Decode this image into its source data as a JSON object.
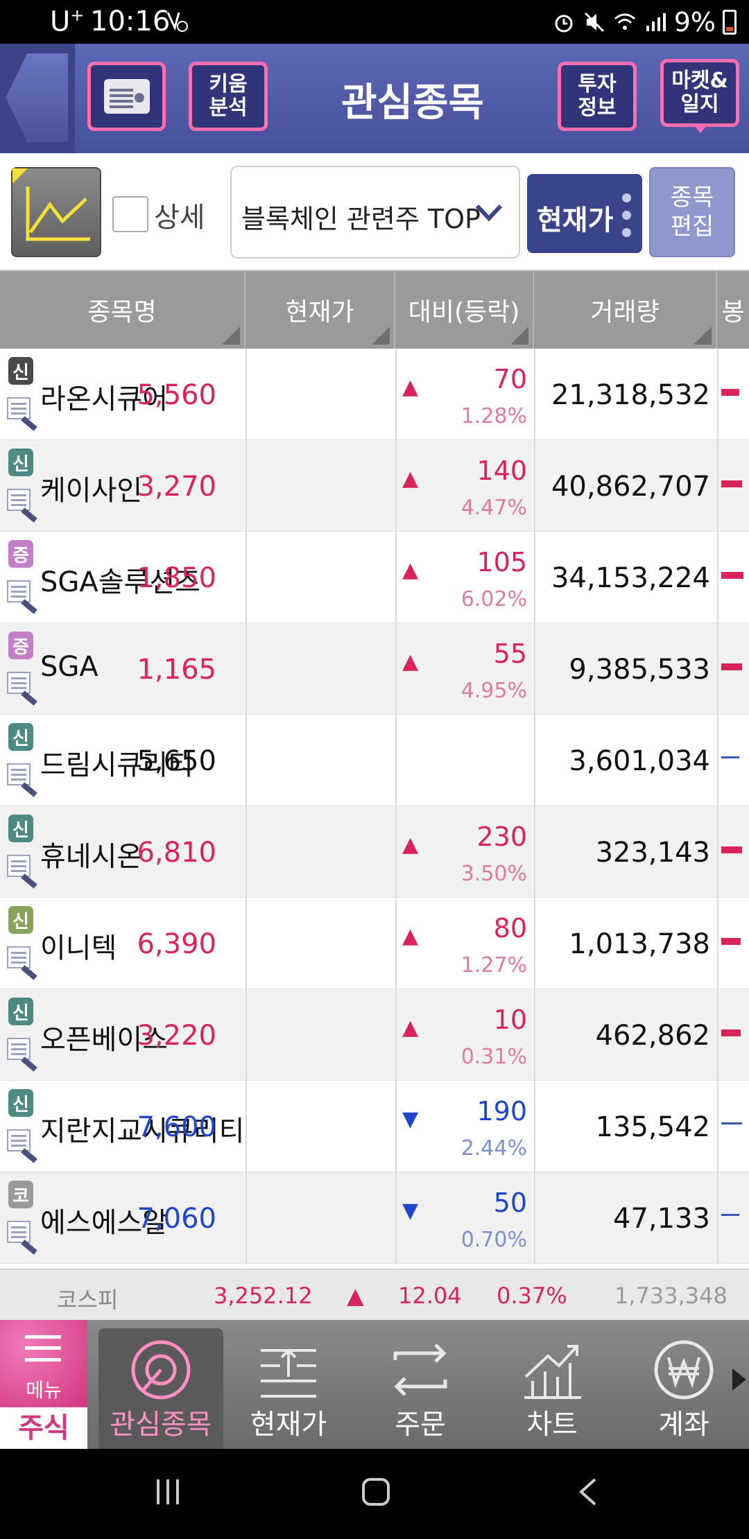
{
  "status_bar": {
    "carrier": "U",
    "carrier_sup": "+",
    "time": "10:16",
    "battery": "9%"
  },
  "header": {
    "title": "관심종목",
    "kiwoom_line1": "키움",
    "kiwoom_line2": "분석",
    "invest_line1": "투자",
    "invest_line2": "정보",
    "market_line1": "마켓&",
    "market_line2": "일지"
  },
  "toolbar": {
    "detail_label": "상세",
    "group_select": "블록체인 관련주 TOP",
    "price_button": "현재가",
    "edit_line1": "종목",
    "edit_line2": "편집"
  },
  "table": {
    "headers": [
      "종목명",
      "현재가",
      "대비(등락)",
      "거래량",
      "봉"
    ],
    "rows": [
      {
        "badge": "신",
        "badge_color": "#4a4a4a",
        "name": "라온시큐어",
        "price": "5,560",
        "dir": "up",
        "change": "70",
        "pct": "1.28%",
        "volume": "21,318,532",
        "candle_w": 26
      },
      {
        "badge": "신",
        "badge_color": "#4d8a86",
        "name": "케이사인",
        "price": "3,270",
        "dir": "up",
        "change": "140",
        "pct": "4.47%",
        "volume": "40,862,707",
        "candle_w": 30
      },
      {
        "badge": "증",
        "badge_color": "#c57fc9",
        "name": "SGA솔루션즈",
        "price": "1,850",
        "dir": "up",
        "change": "105",
        "pct": "6.02%",
        "volume": "34,153,224",
        "candle_w": 32
      },
      {
        "badge": "증",
        "badge_color": "#c57fc9",
        "name": "SGA",
        "price": "1,165",
        "dir": "up",
        "change": "55",
        "pct": "4.95%",
        "volume": "9,385,533",
        "candle_w": 30
      },
      {
        "badge": "신",
        "badge_color": "#4d8a86",
        "name": "드림시큐리티",
        "price": "5,650",
        "dir": "flat",
        "change": "",
        "pct": "",
        "volume": "3,601,034",
        "candle_w": 26
      },
      {
        "badge": "신",
        "badge_color": "#4d8a86",
        "name": "휴네시온",
        "price": "6,810",
        "dir": "up",
        "change": "230",
        "pct": "3.50%",
        "volume": "323,143",
        "candle_w": 30
      },
      {
        "badge": "신",
        "badge_color": "#8aa35a",
        "name": "이니텍",
        "price": "6,390",
        "dir": "up",
        "change": "80",
        "pct": "1.27%",
        "volume": "1,013,738",
        "candle_w": 28
      },
      {
        "badge": "신",
        "badge_color": "#4d8a86",
        "name": "오픈베이스",
        "price": "3,220",
        "dir": "up",
        "change": "10",
        "pct": "0.31%",
        "volume": "462,862",
        "candle_w": 28
      },
      {
        "badge": "신",
        "badge_color": "#4d8a86",
        "name": "지란지교시큐리티",
        "price": "7,600",
        "dir": "down",
        "change": "190",
        "pct": "2.44%",
        "volume": "135,542",
        "candle_w": 30
      },
      {
        "badge": "코",
        "badge_color": "#9a9a9a",
        "name": "에스에스알",
        "price": "7,060",
        "dir": "down",
        "change": "50",
        "pct": "0.70%",
        "volume": "47,133",
        "candle_w": 26
      }
    ]
  },
  "index_bar": {
    "name": "코스피",
    "value": "3,252.12",
    "arrow": "▲",
    "change": "12.04",
    "pct": "0.37%",
    "volume": "1,733,348"
  },
  "bottom_nav": {
    "menu_label": "메뉴",
    "stock_tab": "주식",
    "items": [
      {
        "label": "관심종목",
        "icon": "target-icon"
      },
      {
        "label": "현재가",
        "icon": "price-list-icon"
      },
      {
        "label": "주문",
        "icon": "exchange-icon"
      },
      {
        "label": "차트",
        "icon": "chart-icon"
      },
      {
        "label": "계좌",
        "icon": "won-icon"
      }
    ]
  },
  "colors": {
    "up": "#d8245a",
    "down": "#1f46c8",
    "header_bg": "#5d68b6",
    "accent_pink": "#ff6fb0"
  }
}
